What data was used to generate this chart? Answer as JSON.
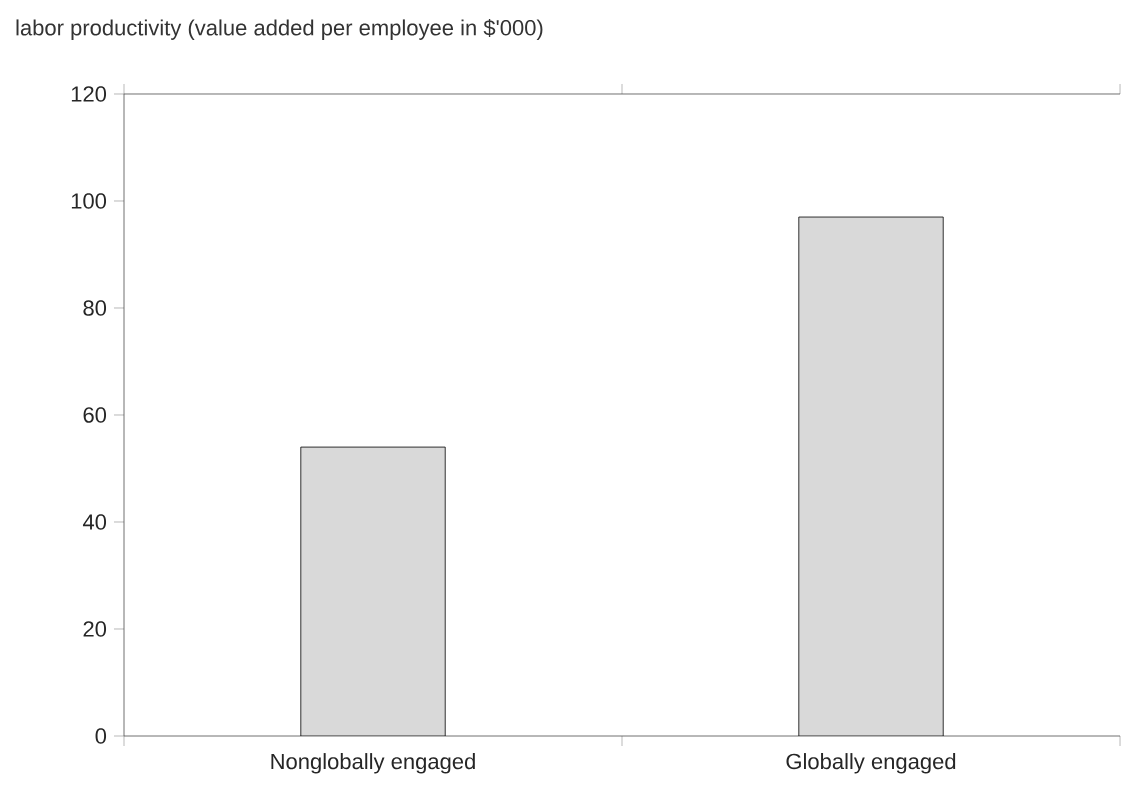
{
  "chart_data": {
    "type": "bar",
    "title": "labor productivity (value added per employee in $'000)",
    "categories": [
      "Nonglobally engaged",
      "Globally engaged"
    ],
    "values": [
      54,
      97
    ],
    "color": "#d9d9d9",
    "ylim": [
      0,
      120
    ],
    "yticks": [
      0,
      20,
      40,
      60,
      80,
      100,
      120
    ],
    "grid": false
  }
}
